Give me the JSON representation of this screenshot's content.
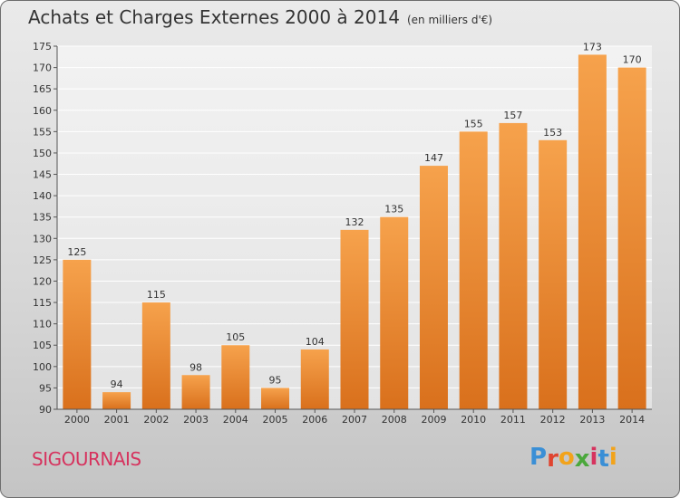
{
  "header": {
    "title": "Achats et Charges Externes 2000 à 2014",
    "unit": "(en milliers d'€)"
  },
  "footer": {
    "commune": "SIGOURNAIS",
    "logo_letters": [
      "P",
      "r",
      "o",
      "x",
      "i",
      "t",
      "i"
    ],
    "logo_colors": [
      "#3a8fd6",
      "#e0442f",
      "#f2a31b",
      "#4ba83c",
      "#d6335e",
      "#3a8fd6",
      "#f2a31b"
    ]
  },
  "colors": {
    "bar_top": "#f6a24c",
    "bar_bottom": "#d9701c",
    "commune": "#d6335e"
  },
  "chart_data": {
    "type": "bar",
    "title": "Achats et Charges Externes 2000 à 2014",
    "subtitle": "(en milliers d'€)",
    "categories": [
      "2000",
      "2001",
      "2002",
      "2003",
      "2004",
      "2005",
      "2006",
      "2007",
      "2008",
      "2009",
      "2010",
      "2011",
      "2012",
      "2013",
      "2014"
    ],
    "values": [
      125,
      94,
      115,
      98,
      105,
      95,
      104,
      132,
      135,
      147,
      155,
      157,
      153,
      173,
      170
    ],
    "ylim": [
      90,
      175
    ],
    "yticks": [
      90,
      95,
      100,
      105,
      110,
      115,
      120,
      125,
      130,
      135,
      140,
      145,
      150,
      155,
      160,
      165,
      170,
      175
    ],
    "grid": true,
    "xlabel": "",
    "ylabel": ""
  }
}
